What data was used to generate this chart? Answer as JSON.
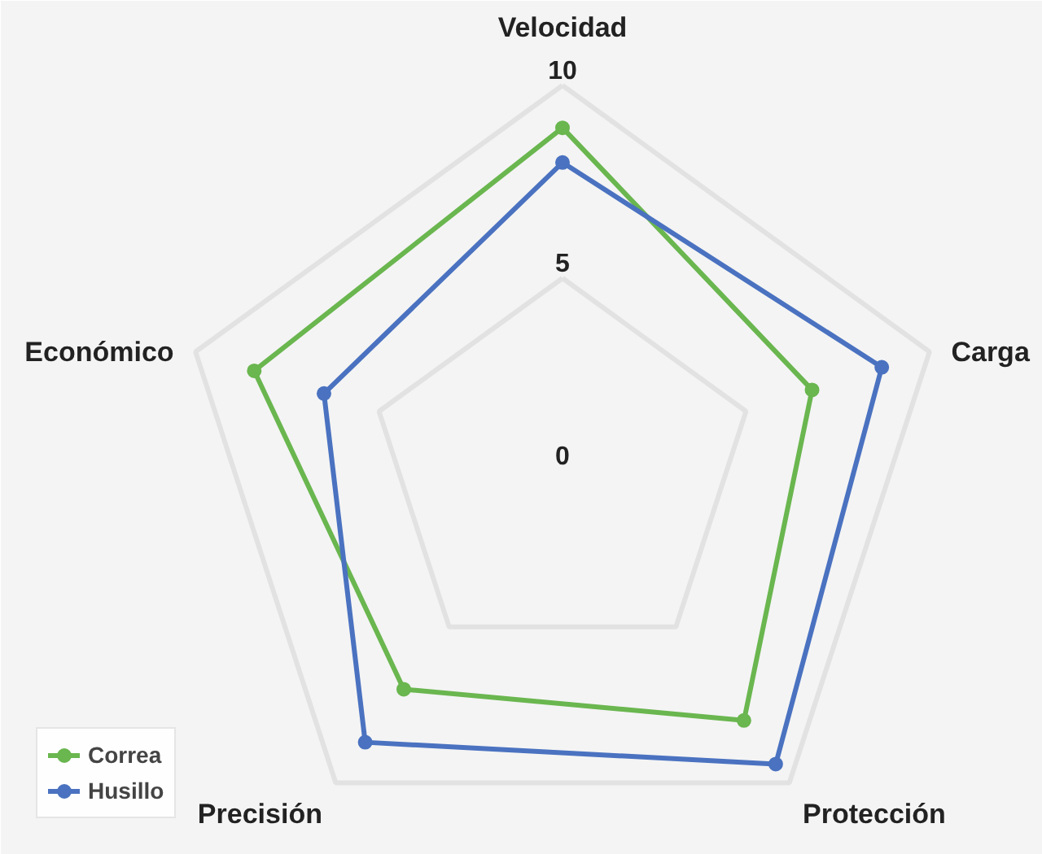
{
  "chart_data": {
    "type": "radar",
    "categories": [
      "Velocidad",
      "Carga",
      "Protección",
      "Precisión",
      "Económico"
    ],
    "series": [
      {
        "name": "Correa",
        "color": "#6ab64f",
        "values": [
          8.9,
          6.8,
          8.0,
          7.0,
          8.4
        ]
      },
      {
        "name": "Husillo",
        "color": "#4a72c0",
        "values": [
          8.0,
          8.7,
          9.4,
          8.7,
          6.5
        ]
      }
    ],
    "ylim": [
      0,
      10
    ],
    "yticks": [
      0,
      5,
      10
    ],
    "grid": true,
    "legend": "bottom left",
    "marker": "circle"
  }
}
